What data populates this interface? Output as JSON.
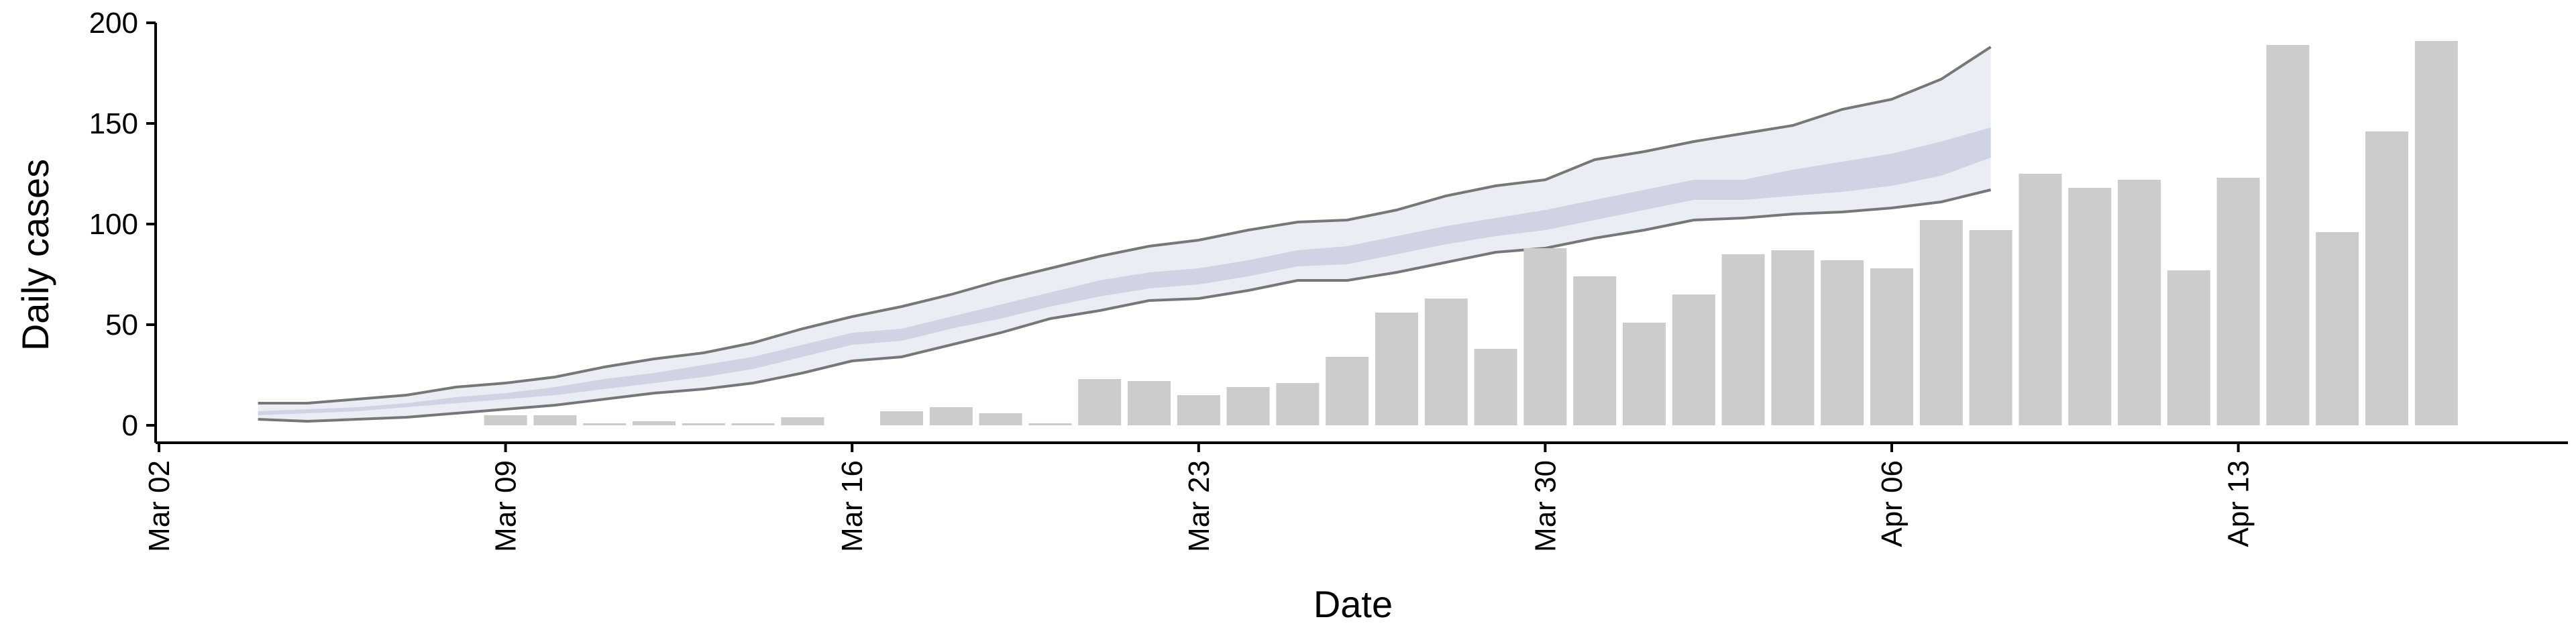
{
  "chart_data": {
    "type": "bar",
    "xlabel": "Date",
    "ylabel": "Daily cases",
    "ylim": [
      0,
      200
    ],
    "y_ticks": [
      "0",
      "50",
      "100",
      "150",
      "200"
    ],
    "x_ticks": [
      "Mar 02",
      "Mar 09",
      "Mar 16",
      "Mar 23",
      "Mar 30",
      "Apr 06",
      "Apr 13"
    ],
    "x_tick_dates": [
      "2020-03-02",
      "2020-03-09",
      "2020-03-16",
      "2020-03-23",
      "2020-03-30",
      "2020-04-06",
      "2020-04-13"
    ],
    "xlim": [
      "2020-03-02",
      "2020-04-18"
    ],
    "bars": {
      "name": "Daily cases",
      "color": "#cccccc",
      "dates": [
        "2020-03-09",
        "2020-03-10",
        "2020-03-11",
        "2020-03-12",
        "2020-03-13",
        "2020-03-14",
        "2020-03-15",
        "2020-03-16",
        "2020-03-17",
        "2020-03-18",
        "2020-03-19",
        "2020-03-20",
        "2020-03-21",
        "2020-03-22",
        "2020-03-23",
        "2020-03-24",
        "2020-03-25",
        "2020-03-26",
        "2020-03-27",
        "2020-03-28",
        "2020-03-29",
        "2020-03-30",
        "2020-03-31",
        "2020-04-01",
        "2020-04-02",
        "2020-04-03",
        "2020-04-04",
        "2020-04-05",
        "2020-04-06",
        "2020-04-07",
        "2020-04-08",
        "2020-04-09",
        "2020-04-10",
        "2020-04-11",
        "2020-04-12",
        "2020-04-13",
        "2020-04-14",
        "2020-04-15",
        "2020-04-16",
        "2020-04-17"
      ],
      "values": [
        5,
        5,
        1,
        2,
        1,
        1,
        4,
        0,
        7,
        9,
        6,
        1,
        23,
        22,
        15,
        19,
        21,
        34,
        56,
        63,
        38,
        88,
        74,
        51,
        65,
        85,
        87,
        82,
        78,
        102,
        97,
        125,
        118,
        122,
        77,
        123,
        189,
        96,
        146,
        191
      ]
    },
    "projection": {
      "color": "#c5cadf",
      "dates": [
        "2020-03-04",
        "2020-03-05",
        "2020-03-06",
        "2020-03-07",
        "2020-03-08",
        "2020-03-09",
        "2020-03-10",
        "2020-03-11",
        "2020-03-12",
        "2020-03-13",
        "2020-03-14",
        "2020-03-15",
        "2020-03-16",
        "2020-03-17",
        "2020-03-18",
        "2020-03-19",
        "2020-03-20",
        "2020-03-21",
        "2020-03-22",
        "2020-03-23",
        "2020-03-24",
        "2020-03-25",
        "2020-03-26",
        "2020-03-27",
        "2020-03-28",
        "2020-03-29",
        "2020-03-30",
        "2020-03-31",
        "2020-04-01",
        "2020-04-02",
        "2020-04-03",
        "2020-04-04",
        "2020-04-05",
        "2020-04-06",
        "2020-04-07",
        "2020-04-08"
      ],
      "lower_outer": [
        3,
        2,
        3,
        4,
        6,
        8,
        10,
        13,
        16,
        18,
        21,
        26,
        32,
        34,
        40,
        46,
        53,
        57,
        62,
        63,
        67,
        72,
        72,
        76,
        81,
        86,
        88,
        93,
        97,
        102,
        103,
        105,
        106,
        108,
        111,
        117
      ],
      "lower_inner": [
        5,
        6,
        7,
        9,
        11,
        13,
        15,
        18,
        21,
        24,
        28,
        34,
        40,
        42,
        48,
        53,
        59,
        64,
        68,
        70,
        74,
        79,
        80,
        85,
        90,
        94,
        97,
        102,
        107,
        112,
        112,
        114,
        116,
        119,
        124,
        133
      ],
      "upper_inner": [
        7,
        8,
        9,
        11,
        14,
        16,
        19,
        23,
        26,
        30,
        34,
        40,
        46,
        48,
        54,
        60,
        66,
        72,
        76,
        78,
        82,
        87,
        89,
        94,
        99,
        103,
        107,
        112,
        117,
        122,
        122,
        127,
        131,
        135,
        141,
        148
      ],
      "upper_outer": [
        11,
        11,
        13,
        15,
        19,
        21,
        24,
        29,
        33,
        36,
        41,
        48,
        54,
        59,
        65,
        72,
        78,
        84,
        89,
        92,
        97,
        101,
        102,
        107,
        114,
        119,
        122,
        132,
        136,
        141,
        145,
        149,
        157,
        162,
        172,
        188
      ]
    }
  }
}
